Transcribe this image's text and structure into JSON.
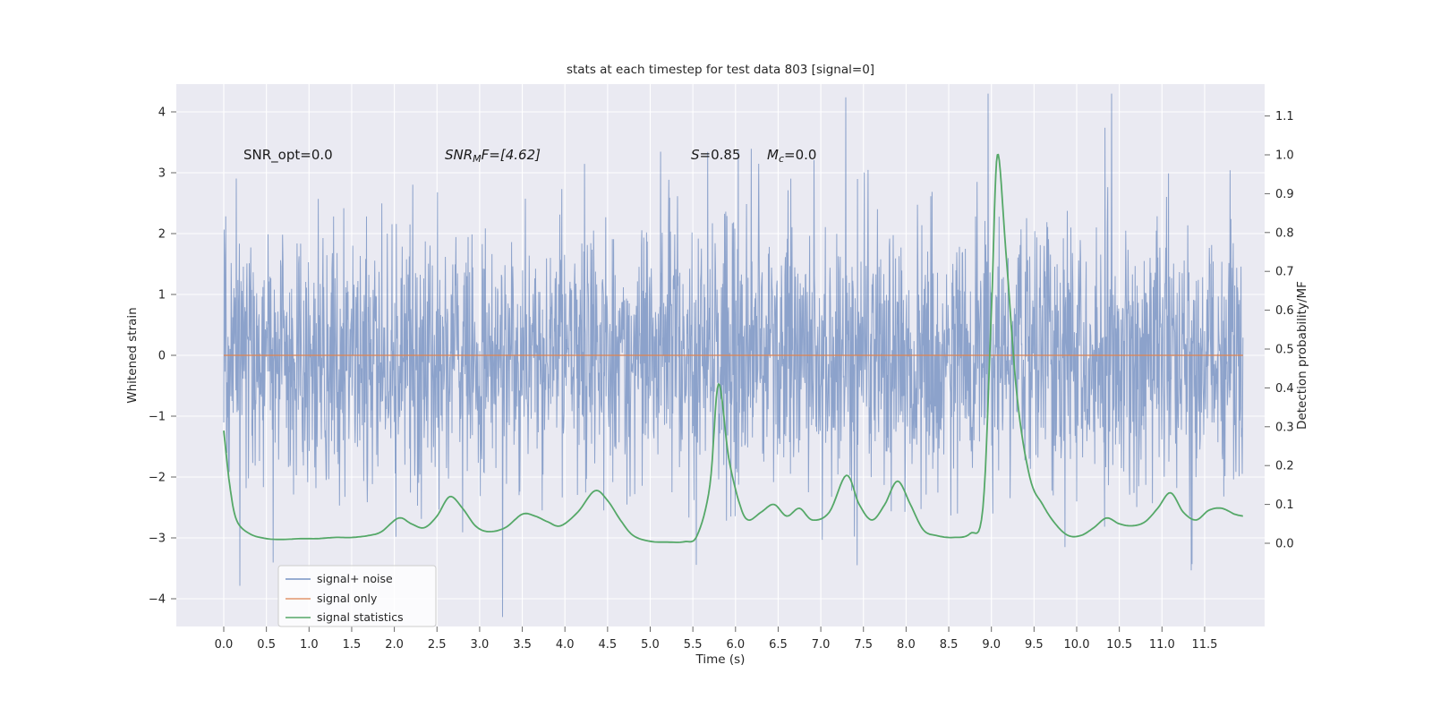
{
  "figure": {
    "title": "stats at each timestep for test data 803 [signal=0]"
  },
  "annotations": {
    "snr_opt": "SNR_opt=0.0",
    "snr_mf_pre": "SNR",
    "snr_mf_sub": "M",
    "snr_mf_post": "F=[4.62]",
    "s_pre": "S",
    "s_post": "=0.85",
    "mc_pre": "M",
    "mc_sub": "c",
    "mc_post": "=0.0"
  },
  "legend": {
    "items": [
      {
        "label": "signal+ noise",
        "color": "rgba(76,114,176,0.75)"
      },
      {
        "label": "signal only",
        "color": "rgba(221,132,82,0.85)"
      },
      {
        "label": "signal statistics",
        "color": "#55A868"
      }
    ]
  },
  "colors": {
    "plot_bg": "#eaeaf2",
    "grid": "#ffffff",
    "noise": "rgba(76,114,176,0.6)",
    "signal_only": "rgba(221,132,82,0.85)",
    "signal_stats": "#55A868",
    "tick": "#666666"
  },
  "chart_data": {
    "type": "line",
    "title": "stats at each timestep for test data 803 [signal=0]",
    "xlabel": "Time (s)",
    "ylabel_left": "Whitened strain",
    "ylabel_right": "Detection probability/MF",
    "x_range": [
      0.0,
      11.95
    ],
    "ylim_left": [
      -4.45,
      4.45
    ],
    "ylim_right": [
      -0.21,
      1.18
    ],
    "grid": true,
    "legend_position": "lower left",
    "x_ticks": {
      "values": [
        0.0,
        0.5,
        1.0,
        1.5,
        2.0,
        2.5,
        3.0,
        3.5,
        4.0,
        4.5,
        5.0,
        5.5,
        6.0,
        6.5,
        7.0,
        7.5,
        8.0,
        8.5,
        9.0,
        9.5,
        10.0,
        10.5,
        11.0,
        11.5
      ],
      "labels": [
        "0.0",
        "0.5",
        "1.0",
        "1.5",
        "2.0",
        "2.5",
        "3.0",
        "3.5",
        "4.0",
        "4.5",
        "5.0",
        "5.5",
        "6.0",
        "6.5",
        "7.0",
        "7.5",
        "8.0",
        "8.5",
        "9.0",
        "9.5",
        "10.0",
        "10.5",
        "11.0",
        "11.5"
      ]
    },
    "y_ticks_left": {
      "values": [
        4,
        3,
        2,
        1,
        0,
        -1,
        -2,
        -3,
        -4
      ],
      "labels": [
        "4",
        "3",
        "2",
        "1",
        "0",
        "−1",
        "−2",
        "−3",
        "−4"
      ]
    },
    "y_ticks_right": {
      "values": [
        1.1,
        1.0,
        0.9,
        0.8,
        0.7,
        0.6,
        0.5,
        0.4,
        0.3,
        0.2,
        0.1,
        0.0
      ],
      "labels": [
        "1.1",
        "1.0",
        "0.9",
        "0.8",
        "0.7",
        "0.6",
        "0.5",
        "0.4",
        "0.3",
        "0.2",
        "0.1",
        "0.0"
      ]
    },
    "annotations_text": [
      "SNR_opt=0.0",
      "SNR_MF=[4.62]",
      "S=0.85",
      "M_c=0.0"
    ],
    "series": [
      {
        "name": "signal+ noise",
        "kind": "gaussian_noise",
        "axis": "left",
        "mean": 0.0,
        "std": 1.02,
        "spike_fraction": 0.08,
        "spike_scale": 1.62,
        "n_points": 2600,
        "seed": 803,
        "clip": 4.3
      },
      {
        "name": "signal only",
        "kind": "constant",
        "axis": "left",
        "value": 0.0
      },
      {
        "name": "signal statistics",
        "kind": "keypoints",
        "axis": "right",
        "points": [
          [
            0.0,
            0.29
          ],
          [
            0.07,
            0.15
          ],
          [
            0.15,
            0.06
          ],
          [
            0.3,
            0.025
          ],
          [
            0.5,
            0.012
          ],
          [
            0.7,
            0.01
          ],
          [
            0.9,
            0.012
          ],
          [
            1.1,
            0.012
          ],
          [
            1.3,
            0.015
          ],
          [
            1.5,
            0.015
          ],
          [
            1.7,
            0.02
          ],
          [
            1.85,
            0.03
          ],
          [
            2.05,
            0.065
          ],
          [
            2.2,
            0.05
          ],
          [
            2.35,
            0.04
          ],
          [
            2.5,
            0.07
          ],
          [
            2.65,
            0.12
          ],
          [
            2.8,
            0.09
          ],
          [
            2.95,
            0.045
          ],
          [
            3.1,
            0.03
          ],
          [
            3.3,
            0.04
          ],
          [
            3.5,
            0.075
          ],
          [
            3.65,
            0.07
          ],
          [
            3.8,
            0.055
          ],
          [
            3.95,
            0.045
          ],
          [
            4.15,
            0.08
          ],
          [
            4.35,
            0.135
          ],
          [
            4.5,
            0.11
          ],
          [
            4.65,
            0.06
          ],
          [
            4.8,
            0.02
          ],
          [
            5.0,
            0.005
          ],
          [
            5.2,
            0.003
          ],
          [
            5.4,
            0.004
          ],
          [
            5.55,
            0.02
          ],
          [
            5.7,
            0.15
          ],
          [
            5.8,
            0.41
          ],
          [
            5.92,
            0.22
          ],
          [
            6.05,
            0.1
          ],
          [
            6.15,
            0.06
          ],
          [
            6.3,
            0.08
          ],
          [
            6.45,
            0.1
          ],
          [
            6.6,
            0.07
          ],
          [
            6.75,
            0.09
          ],
          [
            6.9,
            0.06
          ],
          [
            7.1,
            0.08
          ],
          [
            7.3,
            0.175
          ],
          [
            7.45,
            0.1
          ],
          [
            7.6,
            0.06
          ],
          [
            7.75,
            0.1
          ],
          [
            7.9,
            0.16
          ],
          [
            8.05,
            0.1
          ],
          [
            8.2,
            0.035
          ],
          [
            8.35,
            0.02
          ],
          [
            8.55,
            0.015
          ],
          [
            8.75,
            0.025
          ],
          [
            8.9,
            0.09
          ],
          [
            9.0,
            0.6
          ],
          [
            9.07,
            1.0
          ],
          [
            9.17,
            0.75
          ],
          [
            9.3,
            0.38
          ],
          [
            9.45,
            0.17
          ],
          [
            9.6,
            0.1
          ],
          [
            9.75,
            0.05
          ],
          [
            9.9,
            0.02
          ],
          [
            10.05,
            0.02
          ],
          [
            10.2,
            0.04
          ],
          [
            10.35,
            0.065
          ],
          [
            10.5,
            0.05
          ],
          [
            10.65,
            0.045
          ],
          [
            10.8,
            0.055
          ],
          [
            10.95,
            0.09
          ],
          [
            11.1,
            0.13
          ],
          [
            11.25,
            0.08
          ],
          [
            11.4,
            0.06
          ],
          [
            11.55,
            0.085
          ],
          [
            11.7,
            0.09
          ],
          [
            11.85,
            0.075
          ],
          [
            11.95,
            0.07
          ]
        ]
      }
    ]
  }
}
